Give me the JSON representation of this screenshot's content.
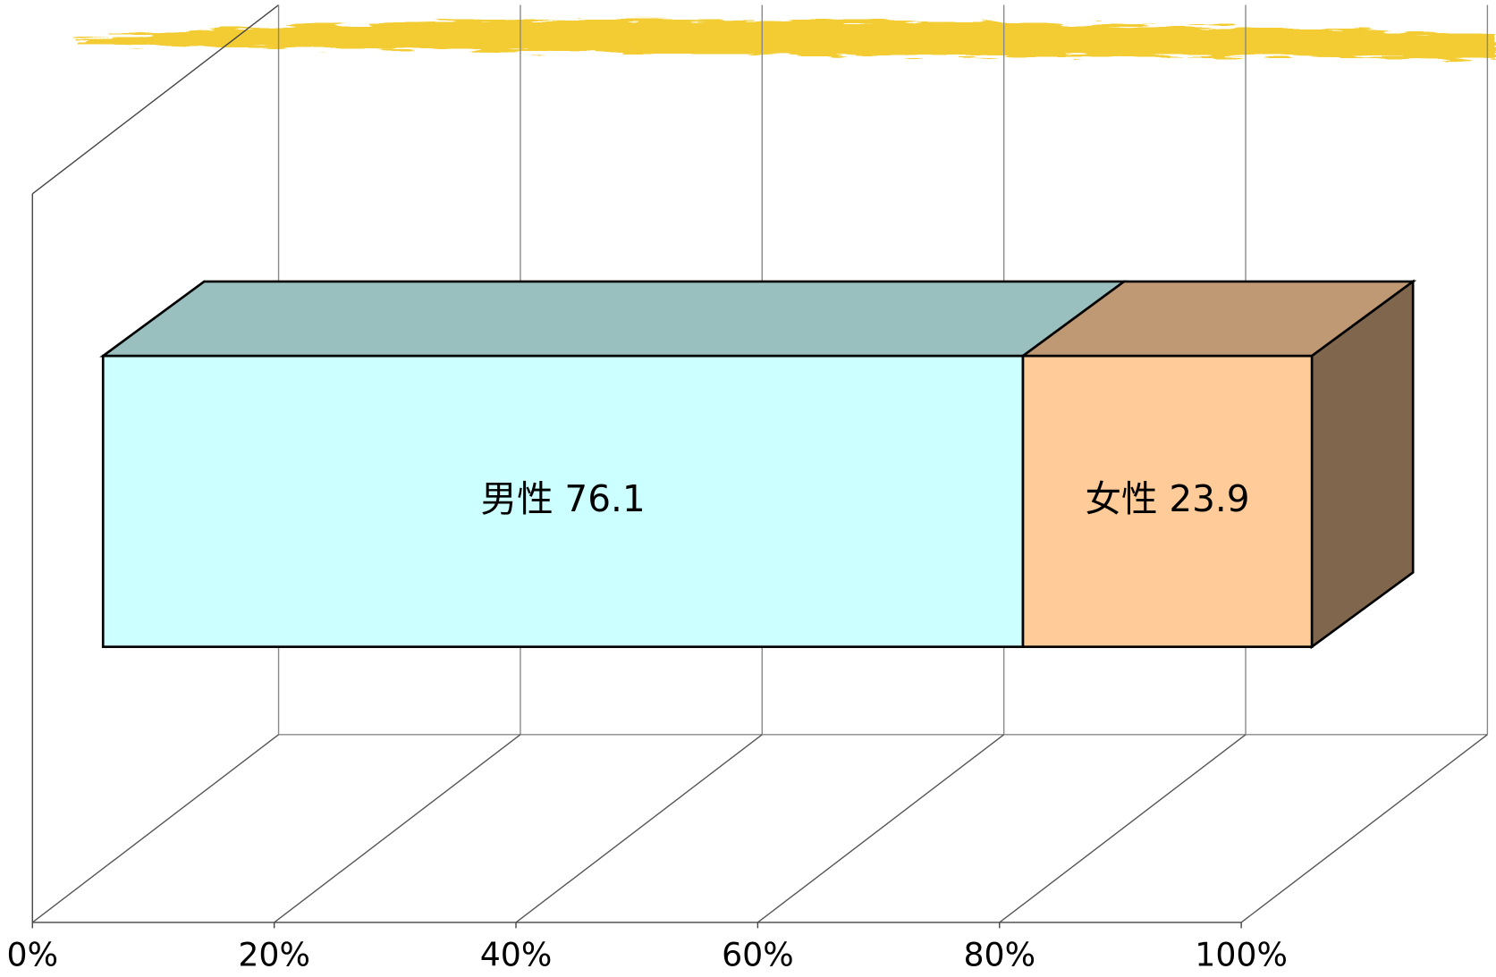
{
  "chart_data": {
    "type": "stacked-bar-3d",
    "series": [
      {
        "name": "男性",
        "color": "#ccffff",
        "values": [
          76.1
        ]
      },
      {
        "name": "女性",
        "color": "#ffcc99",
        "values": [
          23.9
        ]
      }
    ],
    "xlim": [
      0,
      100
    ],
    "xticks": [
      {
        "value": 0,
        "label": "0%"
      },
      {
        "value": 20,
        "label": "20%"
      },
      {
        "value": 40,
        "label": "40%"
      },
      {
        "value": 60,
        "label": "60%"
      },
      {
        "value": 80,
        "label": "80%"
      },
      {
        "value": 100,
        "label": "100%"
      }
    ],
    "grid": true
  }
}
